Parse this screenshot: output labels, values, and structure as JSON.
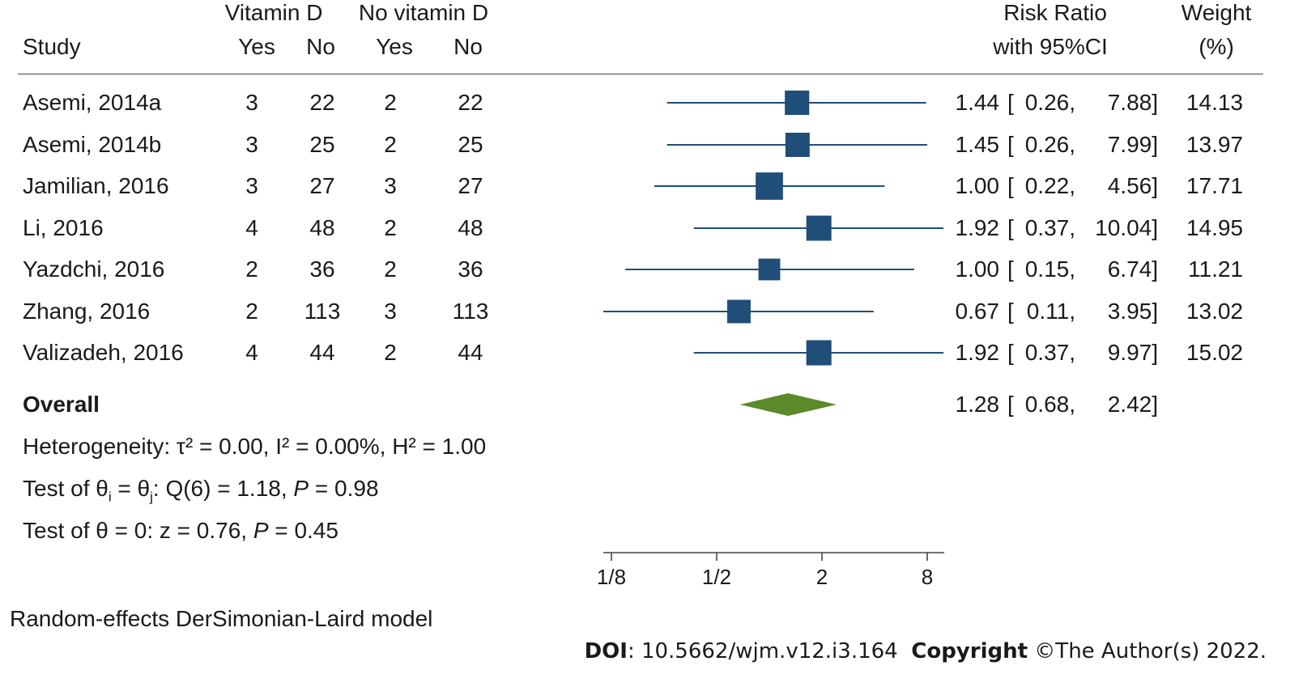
{
  "header": {
    "group1": "Vitamin D",
    "group2": "No vitamin D",
    "study": "Study",
    "yes1": "Yes",
    "no1": "No",
    "yes2": "Yes",
    "no2": "No",
    "rr1": "Risk Ratio",
    "rr2": "with 95%CI",
    "w1": "Weight",
    "w2": "(%)"
  },
  "overall": {
    "label": "Overall",
    "rr": "1.28",
    "lo": "0.68,",
    "hi": "2.42]"
  },
  "notes": {
    "heterogeneity": "Heterogeneity: τ² = 0.00, I² = 0.00%, H² = 1.00",
    "test1_a": "Test of θ",
    "test1_sub_i": "i",
    "test1_b": " = θ",
    "test1_sub_j": "j",
    "test1_c": ": Q(6) = 1.18, ",
    "test1_p": "P",
    "test1_d": " = 0.98",
    "test2_a": "Test of θ = 0: z = 0.76, ",
    "test2_p": "P",
    "test2_b": " = 0.45",
    "model": "Random-effects DerSimonian-Laird model"
  },
  "footer": {
    "doi_label": "DOI",
    "doi_value": ": 10.5662/wjm.v12.i3.164",
    "copyright_label": "Copyright",
    "copyright_value": " ©The Author(s) 2022."
  },
  "colors": {
    "marker": "#1f4e79",
    "ci_line": "#1f4e79",
    "diamond": "#5a8a2a"
  },
  "chart_data": {
    "type": "forest",
    "x_scale": "log2",
    "x_ticks": [
      {
        "value": 0.125,
        "label": "1/8"
      },
      {
        "value": 0.5,
        "label": "1/2"
      },
      {
        "value": 2,
        "label": "2"
      },
      {
        "value": 8,
        "label": "8"
      }
    ],
    "rows": [
      {
        "study": "Asemi, 2014a",
        "vd_yes": "3",
        "vd_no": "22",
        "nvd_yes": "2",
        "nvd_no": "22",
        "rr": 1.44,
        "lo": 0.26,
        "hi": 7.88,
        "rr_txt": "1.44",
        "lo_txt": "0.26,",
        "hi_txt": "7.88]",
        "weight": "14.13"
      },
      {
        "study": "Asemi, 2014b",
        "vd_yes": "3",
        "vd_no": "25",
        "nvd_yes": "2",
        "nvd_no": "25",
        "rr": 1.45,
        "lo": 0.26,
        "hi": 7.99,
        "rr_txt": "1.45",
        "lo_txt": "0.26,",
        "hi_txt": "7.99]",
        "weight": "13.97"
      },
      {
        "study": "Jamilian, 2016",
        "vd_yes": "3",
        "vd_no": "27",
        "nvd_yes": "3",
        "nvd_no": "27",
        "rr": 1.0,
        "lo": 0.22,
        "hi": 4.56,
        "rr_txt": "1.00",
        "lo_txt": "0.22,",
        "hi_txt": "4.56]",
        "weight": "17.71"
      },
      {
        "study": "Li, 2016",
        "vd_yes": "4",
        "vd_no": "48",
        "nvd_yes": "2",
        "nvd_no": "48",
        "rr": 1.92,
        "lo": 0.37,
        "hi": 10.04,
        "rr_txt": "1.92",
        "lo_txt": "0.37,",
        "hi_txt": "10.04]",
        "weight": "14.95"
      },
      {
        "study": "Yazdchi, 2016",
        "vd_yes": "2",
        "vd_no": "36",
        "nvd_yes": "2",
        "nvd_no": "36",
        "rr": 1.0,
        "lo": 0.15,
        "hi": 6.74,
        "rr_txt": "1.00",
        "lo_txt": "0.15,",
        "hi_txt": "6.74]",
        "weight": "11.21"
      },
      {
        "study": "Zhang, 2016",
        "vd_yes": "2",
        "vd_no": "113",
        "nvd_yes": "3",
        "nvd_no": "113",
        "rr": 0.67,
        "lo": 0.11,
        "hi": 3.95,
        "rr_txt": "0.67",
        "lo_txt": "0.11,",
        "hi_txt": "3.95]",
        "weight": "13.02"
      },
      {
        "study": "Valizadeh, 2016",
        "vd_yes": "4",
        "vd_no": "44",
        "nvd_yes": "2",
        "nvd_no": "44",
        "rr": 1.92,
        "lo": 0.37,
        "hi": 9.97,
        "rr_txt": "1.92",
        "lo_txt": "0.37,",
        "hi_txt": "9.97]",
        "weight": "15.02"
      }
    ],
    "overall": {
      "rr": 1.28,
      "lo": 0.68,
      "hi": 2.42
    }
  }
}
